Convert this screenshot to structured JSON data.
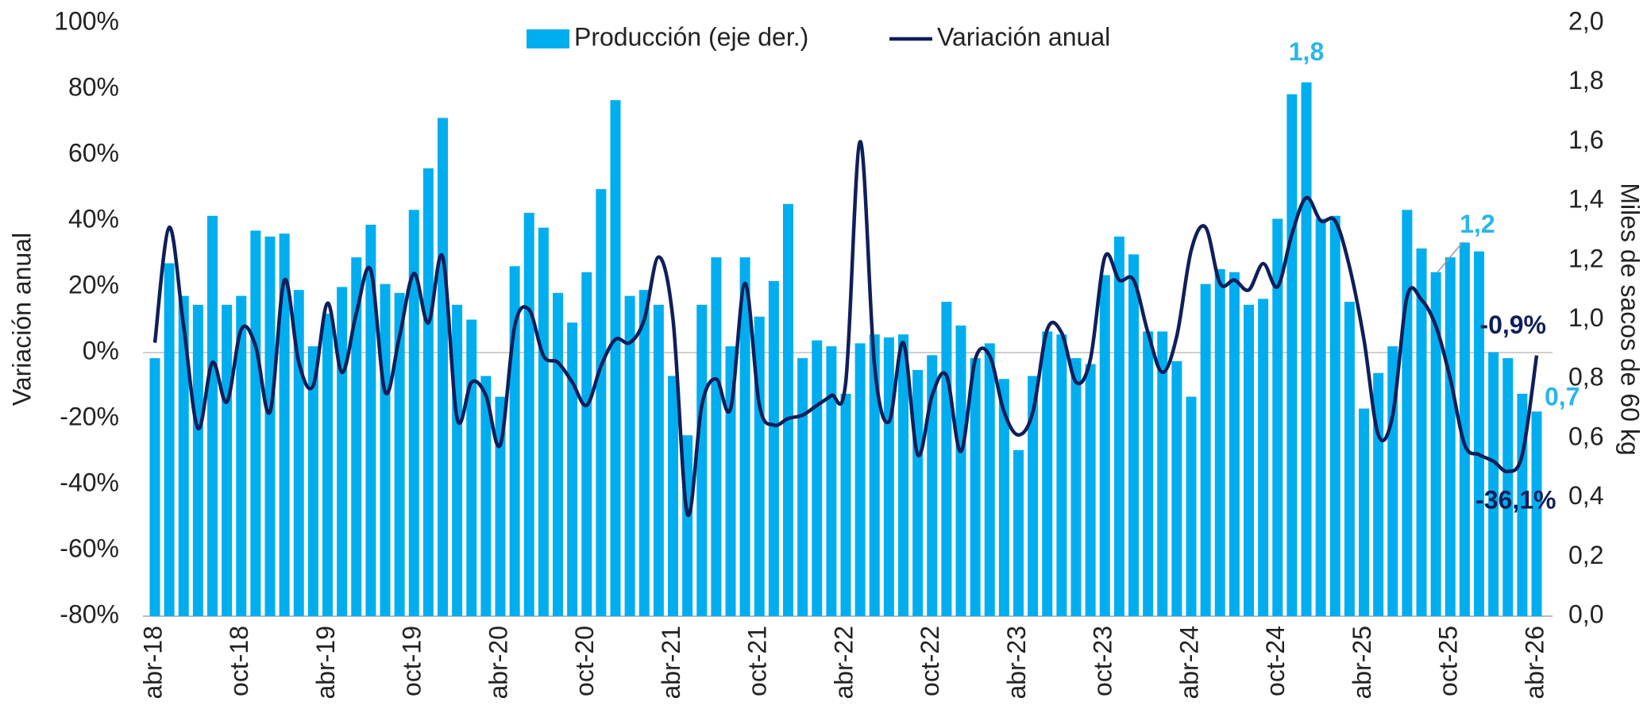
{
  "chart_data": {
    "type": "bar_line",
    "categories": [
      "abr-18",
      null,
      null,
      null,
      null,
      null,
      "oct-18",
      null,
      null,
      null,
      null,
      null,
      "abr-19",
      null,
      null,
      null,
      null,
      null,
      "oct-19",
      null,
      null,
      null,
      null,
      null,
      "abr-20",
      null,
      null,
      null,
      null,
      null,
      "oct-20",
      null,
      null,
      null,
      null,
      null,
      "abr-21",
      null,
      null,
      null,
      null,
      null,
      "oct-21",
      null,
      null,
      null,
      null,
      null,
      "abr-22",
      null,
      null,
      null,
      null,
      null,
      "oct-22",
      null,
      null,
      null,
      null,
      null,
      "abr-23",
      null,
      null,
      null,
      null,
      null,
      "oct-23",
      null,
      null,
      null,
      null,
      null,
      "abr-24",
      null,
      null,
      null,
      null,
      null,
      "oct-24",
      null,
      null,
      null,
      null,
      null,
      "abr-25",
      null,
      null,
      null,
      null,
      null,
      "oct-25",
      null,
      null,
      null,
      null,
      null,
      "abr-26"
    ],
    "ylabel": "Variación anual",
    "y2label": "Miles de sacos de 60 kg",
    "ylim": [
      -80,
      100
    ],
    "yticks": [
      {
        "value": -80,
        "label": "-80%"
      },
      {
        "value": -60,
        "label": "-60%"
      },
      {
        "value": -40,
        "label": "-40%"
      },
      {
        "value": -20,
        "label": "-20%"
      },
      {
        "value": 0,
        "label": "0%"
      },
      {
        "value": 20,
        "label": "20%"
      },
      {
        "value": 40,
        "label": "40%"
      },
      {
        "value": 60,
        "label": "60%"
      },
      {
        "value": 80,
        "label": "80%"
      },
      {
        "value": 100,
        "label": "100%"
      }
    ],
    "y2lim": [
      0,
      2
    ],
    "y2ticks": [
      {
        "value": 0,
        "label": "0,0"
      },
      {
        "value": 0.2,
        "label": "0,2"
      },
      {
        "value": 0.4,
        "label": "0,4"
      },
      {
        "value": 0.6,
        "label": "0,6"
      },
      {
        "value": 0.8,
        "label": "0,8"
      },
      {
        "value": 1,
        "label": "1,0"
      },
      {
        "value": 1.2,
        "label": "1,2"
      },
      {
        "value": 1.4,
        "label": "1,4"
      },
      {
        "value": 1.6,
        "label": "1,6"
      },
      {
        "value": 1.8,
        "label": "1,8"
      },
      {
        "value": 2,
        "label": "2,0"
      }
    ],
    "series": [
      {
        "name": "Producción (eje der.)",
        "type": "bar",
        "axis": "y2",
        "color": "#00aeef",
        "values": [
          0.87,
          1.19,
          1.08,
          1.05,
          1.35,
          1.05,
          1.08,
          1.3,
          1.28,
          1.29,
          1.1,
          0.91,
          1.02,
          1.11,
          1.21,
          1.32,
          1.12,
          1.09,
          1.37,
          1.51,
          1.68,
          1.05,
          1.0,
          0.81,
          0.74,
          1.18,
          1.36,
          1.31,
          1.09,
          0.99,
          1.16,
          1.44,
          1.74,
          1.08,
          1.1,
          1.05,
          0.81,
          0.61,
          1.05,
          1.21,
          0.91,
          1.21,
          1.01,
          1.13,
          1.39,
          0.87,
          0.93,
          0.91,
          0.75,
          0.92,
          0.95,
          0.94,
          0.95,
          0.83,
          0.88,
          1.06,
          0.98,
          0.87,
          0.92,
          0.8,
          0.56,
          0.81,
          0.96,
          0.95,
          0.87,
          0.85,
          1.15,
          1.28,
          1.22,
          0.96,
          0.96,
          0.86,
          0.74,
          1.12,
          1.17,
          1.16,
          1.05,
          1.07,
          1.34,
          1.76,
          1.8,
          1.34,
          1.35,
          1.06,
          0.7,
          0.82,
          0.91,
          1.37,
          1.24,
          1.16,
          1.21,
          1.26,
          1.23,
          0.89,
          0.87,
          0.75,
          0.69
        ],
        "value_labels": [
          null,
          null,
          null,
          null,
          null,
          null,
          null,
          null,
          null,
          null,
          null,
          null,
          null,
          null,
          null,
          null,
          null,
          null,
          null,
          null,
          null,
          null,
          null,
          null,
          null,
          null,
          null,
          null,
          null,
          null,
          null,
          null,
          null,
          null,
          null,
          null,
          null,
          null,
          null,
          null,
          null,
          null,
          null,
          null,
          null,
          null,
          null,
          null,
          null,
          null,
          null,
          null,
          null,
          null,
          null,
          null,
          null,
          null,
          null,
          null,
          null,
          null,
          null,
          null,
          null,
          null,
          null,
          null,
          null,
          null,
          null,
          null,
          null,
          null,
          null,
          null,
          null,
          null,
          null,
          null,
          "1,8",
          null,
          null,
          null,
          null,
          null,
          null,
          null,
          null,
          "1,2",
          null,
          null,
          null,
          null,
          null,
          null,
          "0,7"
        ]
      },
      {
        "name": "Variación anual",
        "type": "line",
        "axis": "y",
        "color": "#0f1f5a",
        "values": [
          3,
          38,
          8,
          -23,
          -3,
          -15,
          7,
          2,
          -18,
          22,
          -3,
          -10,
          15,
          -6,
          12,
          25,
          -12,
          5,
          24,
          9,
          29,
          -20,
          -9,
          -13,
          -28,
          8,
          13,
          -1,
          -3,
          -9,
          -16,
          -4,
          4,
          3,
          10,
          29,
          10,
          -49,
          -16,
          -8,
          -17,
          21,
          -16,
          -22,
          -20,
          -19,
          -16,
          -13,
          -9,
          64,
          -4,
          -21,
          3,
          -31,
          -13,
          -7,
          -30,
          -2,
          -1,
          -18,
          -25,
          -18,
          7,
          6,
          -9,
          -2,
          29,
          22,
          22,
          6,
          -6,
          5,
          31,
          38,
          21,
          22,
          19,
          27,
          20,
          36,
          47,
          40,
          40,
          26,
          4,
          -25,
          -19,
          17,
          16,
          8,
          -8,
          -28,
          -31,
          -33,
          -36.1,
          -31,
          -0.9
        ],
        "value_labels": [
          null,
          null,
          null,
          null,
          null,
          null,
          null,
          null,
          null,
          null,
          null,
          null,
          null,
          null,
          null,
          null,
          null,
          null,
          null,
          null,
          null,
          null,
          null,
          null,
          null,
          null,
          null,
          null,
          null,
          null,
          null,
          null,
          null,
          null,
          null,
          null,
          null,
          null,
          null,
          null,
          null,
          null,
          null,
          null,
          null,
          null,
          null,
          null,
          null,
          null,
          null,
          null,
          null,
          null,
          null,
          null,
          null,
          null,
          null,
          null,
          null,
          null,
          null,
          null,
          null,
          null,
          null,
          null,
          null,
          null,
          null,
          null,
          null,
          null,
          null,
          null,
          null,
          null,
          null,
          null,
          null,
          null,
          null,
          null,
          null,
          null,
          null,
          null,
          null,
          null,
          null,
          null,
          null,
          null,
          "-36,1%",
          null,
          "-0,9%"
        ]
      }
    ],
    "grid": false
  }
}
